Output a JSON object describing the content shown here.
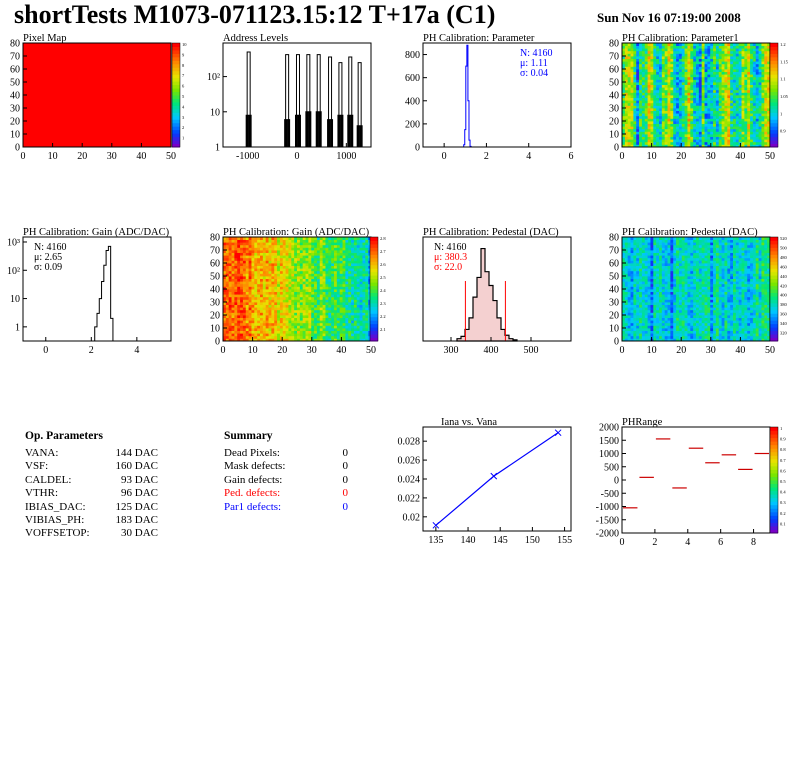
{
  "header": {
    "title": "shortTests M1073-071123.15:12 T+17a (C1)",
    "date": "Sun Nov 16 07:19:00 2008"
  },
  "colors": {
    "red": "#ff0000",
    "blue": "#0000ff",
    "fill_red": "#cc0000"
  },
  "panels": {
    "pixel_map": {
      "title": "Pixel Map",
      "xticks": [
        "0",
        "10",
        "20",
        "30",
        "40",
        "50"
      ],
      "yticks": [
        "0",
        "10",
        "20",
        "30",
        "40",
        "50",
        "60",
        "70",
        "80"
      ],
      "zticks": [
        "1",
        "2",
        "3",
        "4",
        "5",
        "6",
        "7",
        "8",
        "9",
        "10"
      ]
    },
    "address_levels": {
      "title": "Address Levels",
      "xticks": [
        "-1000",
        "0",
        "1000"
      ],
      "yticks": [
        "1",
        "10",
        "10²"
      ]
    },
    "ph_param": {
      "title": "PH Calibration: Parameter",
      "xticks": [
        "0",
        "2",
        "4",
        "6"
      ],
      "yticks": [
        "0",
        "200",
        "400",
        "600",
        "800"
      ],
      "stats": [
        "N: 4160",
        "μ: 1.11",
        "σ: 0.04"
      ]
    },
    "ph_param1": {
      "title": "PH Calibration: Parameter1",
      "xticks": [
        "0",
        "10",
        "20",
        "30",
        "40",
        "50"
      ],
      "yticks": [
        "0",
        "10",
        "20",
        "30",
        "40",
        "50",
        "60",
        "70",
        "80"
      ],
      "zticks": [
        "0.9",
        "1",
        "1.05",
        "1.1",
        "1.15",
        "1.2"
      ]
    },
    "gain_hist": {
      "title": "PH Calibration: Gain (ADC/DAC)",
      "xticks": [
        "0",
        "2",
        "4"
      ],
      "yticks": [
        "1",
        "10",
        "10²",
        "10³"
      ],
      "stats": [
        "N: 4160",
        "μ: 2.65",
        "σ: 0.09"
      ]
    },
    "gain_map": {
      "title": "PH Calibration: Gain (ADC/DAC)",
      "xticks": [
        "0",
        "10",
        "20",
        "30",
        "40",
        "50"
      ],
      "yticks": [
        "0",
        "10",
        "20",
        "30",
        "40",
        "50",
        "60",
        "70",
        "80"
      ],
      "zticks": [
        "2.1",
        "2.2",
        "2.3",
        "2.4",
        "2.5",
        "2.6",
        "2.7",
        "2.8"
      ]
    },
    "ped_hist": {
      "title": "PH Calibration: Pedestal (DAC)",
      "xticks": [
        "300",
        "400",
        "500"
      ],
      "yticks": [],
      "stats": [
        "N: 4160",
        "μ: 380.3",
        "σ: 22.0"
      ]
    },
    "ped_map": {
      "title": "PH Calibration: Pedestal (DAC)",
      "xticks": [
        "0",
        "10",
        "20",
        "30",
        "40",
        "50"
      ],
      "yticks": [
        "0",
        "10",
        "20",
        "30",
        "40",
        "50",
        "60",
        "70",
        "80"
      ],
      "zticks": [
        "320",
        "340",
        "360",
        "380",
        "400",
        "420",
        "440",
        "460",
        "480",
        "500",
        "520"
      ]
    },
    "iana": {
      "title": "Iana vs. Vana",
      "xticks": [
        "135",
        "140",
        "145",
        "150",
        "155"
      ],
      "yticks": [
        "0.02",
        "0.022",
        "0.024",
        "0.026",
        "0.028"
      ]
    },
    "phrange": {
      "title": "PHRange",
      "xticks": [
        "0",
        "2",
        "4",
        "6",
        "8"
      ],
      "yticks": [
        "-2000",
        "-1500",
        "-1000",
        "-500",
        "0",
        "500",
        "1000",
        "1500",
        "2000"
      ],
      "zticks": [
        "0.1",
        "0.2",
        "0.3",
        "0.4",
        "0.5",
        "0.6",
        "0.7",
        "0.8",
        "0.9",
        "1"
      ]
    }
  },
  "op_params": {
    "heading": "Op. Parameters",
    "rows": [
      {
        "name": "VANA:",
        "value": "144 DAC"
      },
      {
        "name": "VSF:",
        "value": "160 DAC"
      },
      {
        "name": "CALDEL:",
        "value": "93 DAC"
      },
      {
        "name": "VTHR:",
        "value": "96 DAC"
      },
      {
        "name": "IBIAS_DAC:",
        "value": "125 DAC"
      },
      {
        "name": "VIBIAS_PH:",
        "value": "183 DAC"
      },
      {
        "name": "VOFFSETOP:",
        "value": "30 DAC"
      }
    ]
  },
  "summary": {
    "heading": "Summary",
    "rows": [
      {
        "name": "Dead Pixels:",
        "value": "0",
        "color": "#000000"
      },
      {
        "name": "Mask defects:",
        "value": "0",
        "color": "#000000"
      },
      {
        "name": "Gain defects:",
        "value": "0",
        "color": "#000000"
      },
      {
        "name": "Ped. defects:",
        "value": "0",
        "color": "#ff0000"
      },
      {
        "name": "Par1 defects:",
        "value": "0",
        "color": "#0000ff"
      }
    ]
  },
  "chart_data": [
    {
      "type": "heatmap",
      "title": "Pixel Map",
      "xlim": [
        0,
        52
      ],
      "ylim": [
        0,
        80
      ],
      "zlim": [
        0,
        10
      ],
      "uniform_value": 10
    },
    {
      "type": "bar",
      "title": "Address Levels",
      "xlim": [
        -1500,
        1500
      ],
      "log_y": true,
      "x": [
        -1000,
        -980,
        -960,
        -220,
        -200,
        -180,
        0,
        20,
        40,
        210,
        230,
        250,
        420,
        440,
        460,
        650,
        670,
        690,
        860,
        880,
        900,
        1060,
        1080,
        1100,
        1250,
        1270,
        1290
      ],
      "values": [
        8,
        500,
        8,
        6,
        420,
        6,
        8,
        420,
        8,
        10,
        420,
        10,
        10,
        420,
        10,
        6,
        360,
        6,
        8,
        250,
        8,
        8,
        360,
        8,
        4,
        250,
        4
      ]
    },
    {
      "type": "bar",
      "title": "PH Calibration: Parameter",
      "xlim": [
        -1,
        6
      ],
      "ylim": [
        0,
        900
      ],
      "x": [
        0.95,
        1.0,
        1.05,
        1.1,
        1.15,
        1.2,
        1.25
      ],
      "values": [
        20,
        150,
        700,
        880,
        400,
        60,
        5
      ]
    },
    {
      "type": "heatmap",
      "title": "PH Calibration: Parameter1",
      "xlim": [
        0,
        52
      ],
      "ylim": [
        0,
        80
      ],
      "zlim": [
        0.85,
        1.25
      ]
    },
    {
      "type": "bar",
      "title": "PH Calibration: Gain (ADC/DAC)",
      "xlim": [
        -1,
        5.5
      ],
      "log_y": true,
      "x": [
        2.2,
        2.3,
        2.4,
        2.5,
        2.6,
        2.7,
        2.8,
        2.9
      ],
      "values": [
        1,
        3,
        10,
        40,
        150,
        500,
        700,
        2
      ]
    },
    {
      "type": "heatmap",
      "title": "PH Calibration: Gain (ADC/DAC)",
      "xlim": [
        0,
        52
      ],
      "ylim": [
        0,
        80
      ],
      "zlim": [
        2.05,
        2.85
      ]
    },
    {
      "type": "bar",
      "title": "PH Calibration: Pedestal (DAC)",
      "xlim": [
        230,
        600
      ],
      "x": [
        320,
        330,
        340,
        350,
        360,
        370,
        380,
        390,
        400,
        410,
        420,
        430,
        440,
        450,
        460
      ],
      "values": [
        2,
        4,
        10,
        20,
        38,
        55,
        80,
        60,
        48,
        35,
        20,
        10,
        5,
        2,
        1
      ]
    },
    {
      "type": "heatmap",
      "title": "PH Calibration: Pedestal (DAC)",
      "xlim": [
        0,
        52
      ],
      "ylim": [
        0,
        80
      ],
      "zlim": [
        310,
        530
      ]
    },
    {
      "type": "line",
      "title": "Iana vs. Vana",
      "xlim": [
        133,
        156
      ],
      "ylim": [
        0.0185,
        0.0295
      ],
      "series": [
        {
          "x": [
            135,
            144,
            154
          ],
          "values": [
            0.0191,
            0.0243,
            0.0289
          ]
        }
      ]
    },
    {
      "type": "scatter",
      "title": "PHRange",
      "xlim": [
        0,
        9
      ],
      "ylim": [
        -2000,
        2000
      ],
      "series": [
        {
          "x": [
            0,
            1,
            2,
            3,
            4,
            5,
            6,
            7,
            8
          ],
          "values": [
            -1050,
            100,
            1550,
            -300,
            1200,
            650,
            950,
            400,
            1000
          ]
        }
      ]
    }
  ]
}
